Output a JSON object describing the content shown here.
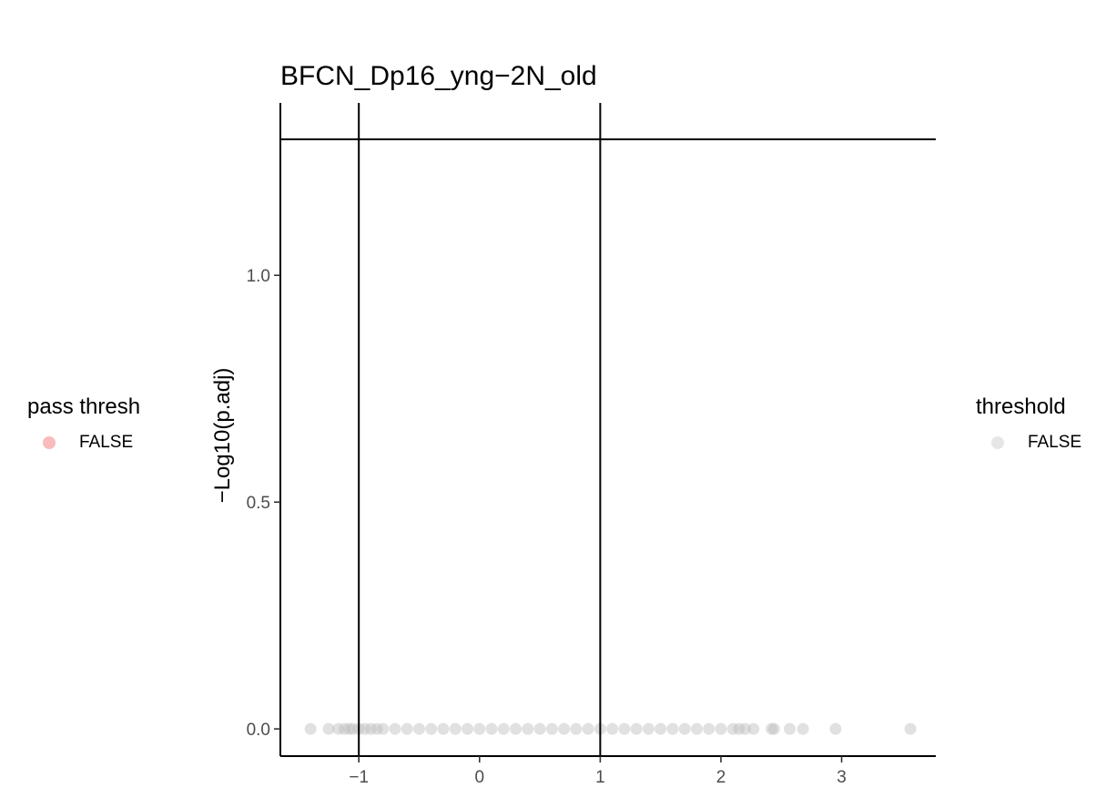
{
  "chart_data": {
    "type": "scatter",
    "title": "BFCN_Dp16_yng−2N_old",
    "xlabel": "",
    "ylabel": "−Log10(p.adj)",
    "xlim": [
      -1.65,
      3.78
    ],
    "ylim": [
      -0.06,
      1.38
    ],
    "x_ticks": [
      -1,
      0,
      1,
      2,
      3
    ],
    "x_tick_labels": [
      "−1",
      "0",
      "1",
      "2",
      "3"
    ],
    "y_ticks": [
      0.0,
      0.5,
      1.0
    ],
    "y_tick_labels": [
      "0.0",
      "0.5",
      "1.0"
    ],
    "reference_lines": {
      "vertical_x": [
        -1,
        1
      ],
      "horizontal_y": [
        1.3
      ]
    },
    "grid": false,
    "point_color": "#bdbdbd",
    "point_opacity": 0.45,
    "points": [
      {
        "x": -1.4,
        "y": 0
      },
      {
        "x": -1.25,
        "y": 0
      },
      {
        "x": -1.17,
        "y": 0
      },
      {
        "x": -1.12,
        "y": 0
      },
      {
        "x": -1.08,
        "y": 0
      },
      {
        "x": -1.05,
        "y": 0
      },
      {
        "x": -1.0,
        "y": 0
      },
      {
        "x": -0.95,
        "y": 0
      },
      {
        "x": -0.9,
        "y": 0
      },
      {
        "x": -0.85,
        "y": 0
      },
      {
        "x": -0.8,
        "y": 0
      },
      {
        "x": -0.7,
        "y": 0
      },
      {
        "x": -0.6,
        "y": 0
      },
      {
        "x": -0.5,
        "y": 0
      },
      {
        "x": -0.4,
        "y": 0
      },
      {
        "x": -0.3,
        "y": 0
      },
      {
        "x": -0.2,
        "y": 0
      },
      {
        "x": -0.1,
        "y": 0
      },
      {
        "x": 0.0,
        "y": 0
      },
      {
        "x": 0.1,
        "y": 0
      },
      {
        "x": 0.2,
        "y": 0
      },
      {
        "x": 0.3,
        "y": 0
      },
      {
        "x": 0.4,
        "y": 0
      },
      {
        "x": 0.5,
        "y": 0
      },
      {
        "x": 0.6,
        "y": 0
      },
      {
        "x": 0.7,
        "y": 0
      },
      {
        "x": 0.8,
        "y": 0
      },
      {
        "x": 0.9,
        "y": 0
      },
      {
        "x": 1.0,
        "y": 0
      },
      {
        "x": 1.1,
        "y": 0
      },
      {
        "x": 1.2,
        "y": 0
      },
      {
        "x": 1.3,
        "y": 0
      },
      {
        "x": 1.4,
        "y": 0
      },
      {
        "x": 1.5,
        "y": 0
      },
      {
        "x": 1.6,
        "y": 0
      },
      {
        "x": 1.7,
        "y": 0
      },
      {
        "x": 1.8,
        "y": 0
      },
      {
        "x": 1.9,
        "y": 0
      },
      {
        "x": 2.0,
        "y": 0
      },
      {
        "x": 2.1,
        "y": 0
      },
      {
        "x": 2.15,
        "y": 0
      },
      {
        "x": 2.2,
        "y": 0
      },
      {
        "x": 2.27,
        "y": 0
      },
      {
        "x": 2.42,
        "y": 0
      },
      {
        "x": 2.44,
        "y": 0
      },
      {
        "x": 2.57,
        "y": 0
      },
      {
        "x": 2.68,
        "y": 0
      },
      {
        "x": 2.95,
        "y": 0
      },
      {
        "x": 3.57,
        "y": 0
      }
    ],
    "legends": [
      {
        "title": "pass thresh",
        "entries": [
          {
            "label": "FALSE",
            "color": "#f8bcbc"
          }
        ]
      },
      {
        "title": "threshold",
        "entries": [
          {
            "label": "FALSE",
            "color": "#e6e6e6"
          }
        ]
      }
    ]
  }
}
